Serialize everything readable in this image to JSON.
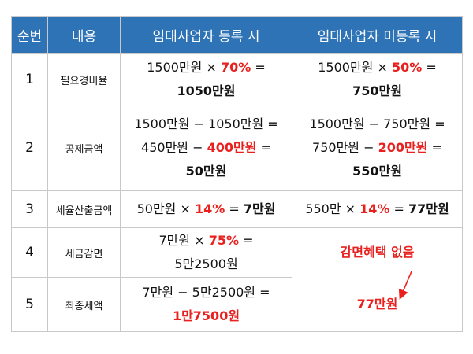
{
  "header": {
    "col1": "순번",
    "col2": "내용",
    "col3": "임대사업자 등록 시",
    "col4": "임대사업자 미등록 시"
  },
  "rows": [
    {
      "no": "1",
      "item": "필요경비율",
      "reg": {
        "l1a": "1500만원 × ",
        "l1b": "70%",
        "l1c": " =",
        "l2": "1050만원"
      },
      "unreg": {
        "l1a": "1500만원 × ",
        "l1b": "50%",
        "l1c": " =",
        "l2": "750만원"
      }
    },
    {
      "no": "2",
      "item": "공제금액",
      "reg": {
        "l1": "1500만원 − 1050만원 =",
        "l2a": "450만원 − ",
        "l2b": "400만원",
        "l2c": " =",
        "l3": "50만원"
      },
      "unreg": {
        "l1": "1500만원 − 750만원 =",
        "l2a": "750만원 − ",
        "l2b": "200만원",
        "l2c": " =",
        "l3": "550만원"
      }
    },
    {
      "no": "3",
      "item": "세율산출금액",
      "reg": {
        "a": "50만원 × ",
        "b": "14%",
        "c": " = ",
        "d": "7만원"
      },
      "unreg": {
        "a": "550만 × ",
        "b": "14%",
        "c": " = ",
        "d": "77만원"
      }
    },
    {
      "no": "4",
      "item": "세금감면",
      "reg": {
        "l1a": "7만원 × ",
        "l1b": "75%",
        "l1c": " =",
        "l2": "5만2500원"
      },
      "unreg": {
        "text": "감면혜택 없음"
      }
    },
    {
      "no": "5",
      "item": "최종세액",
      "reg": {
        "l1": "7만원 − 5만2500원 =",
        "l2": "1만7500원"
      },
      "unreg": {
        "text": "77만원"
      }
    }
  ],
  "colors": {
    "header_bg": "#2d73b5",
    "header_text": "#ffffff",
    "accent_red": "#e8201e"
  }
}
